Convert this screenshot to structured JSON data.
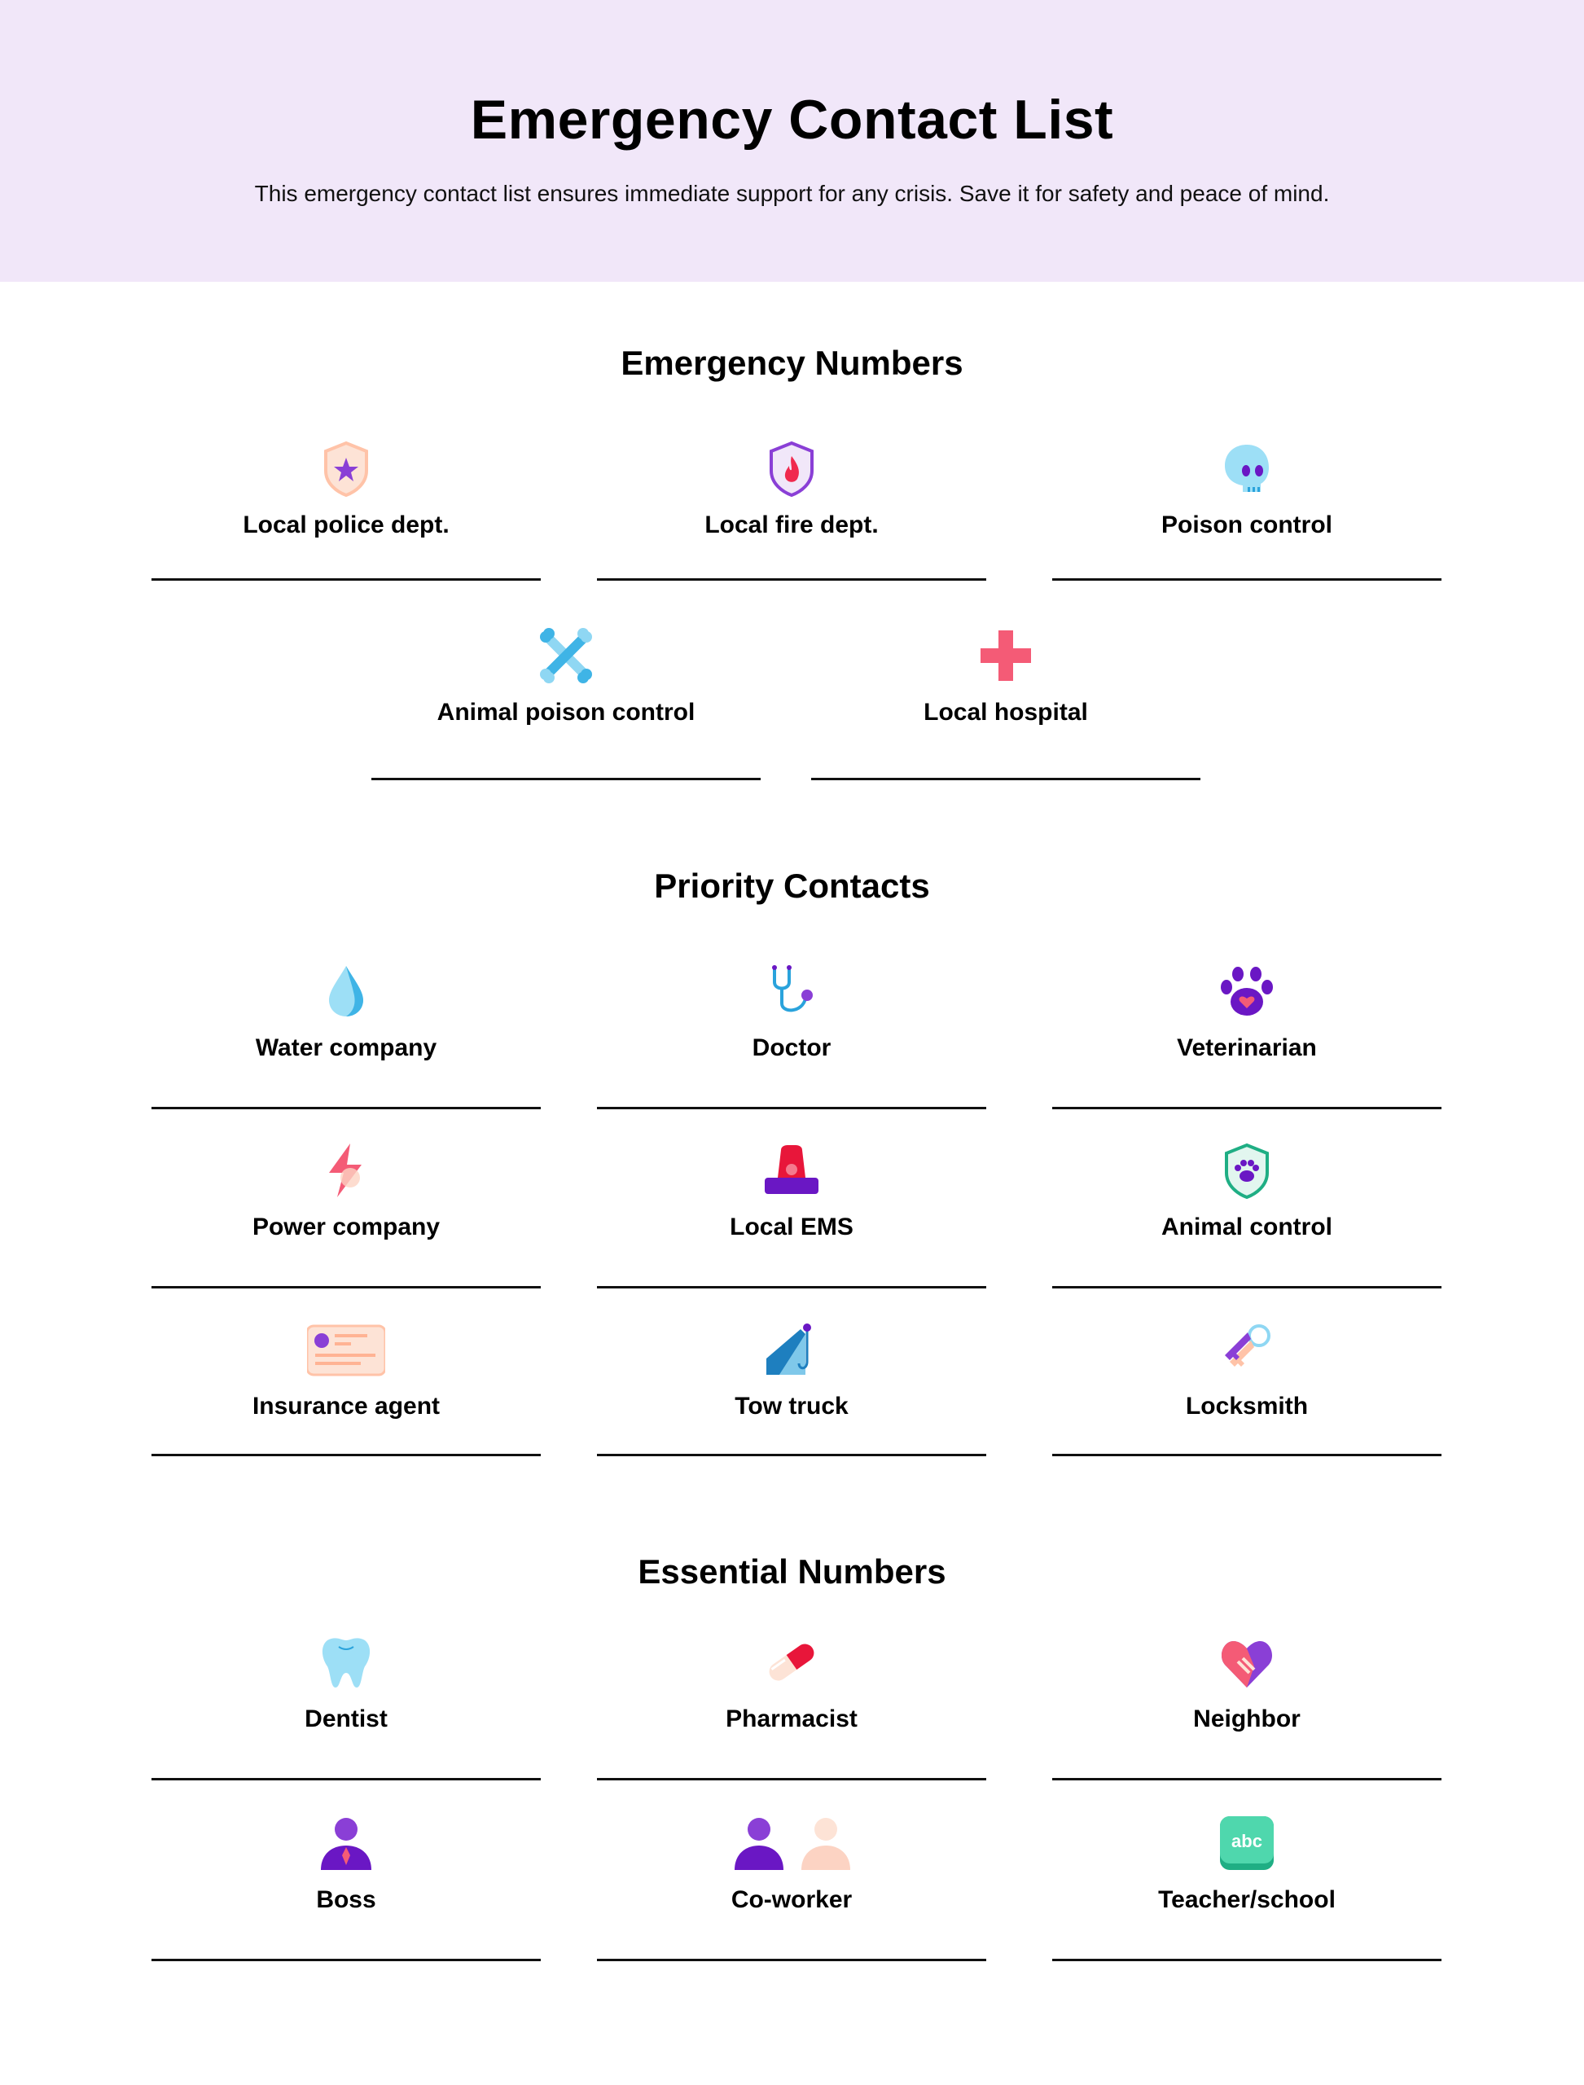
{
  "header": {
    "title": "Emergency Contact List",
    "subtitle": "This emergency contact list ensures immediate support for any crisis. Save it for safety and peace of mind.",
    "background": "#f1e7f9"
  },
  "sections": [
    {
      "title": "Emergency Numbers",
      "items": [
        {
          "label": "Local police dept.",
          "icon": "police-shield-icon"
        },
        {
          "label": "Local fire dept.",
          "icon": "fire-shield-icon"
        },
        {
          "label": "Poison control",
          "icon": "skull-icon"
        },
        {
          "label": "Animal poison control",
          "icon": "crossbones-icon"
        },
        {
          "label": "Local hospital",
          "icon": "medical-cross-icon"
        }
      ]
    },
    {
      "title": "Priority Contacts",
      "items": [
        {
          "label": "Water company",
          "icon": "water-drop-icon"
        },
        {
          "label": "Doctor",
          "icon": "stethoscope-icon"
        },
        {
          "label": "Veterinarian",
          "icon": "paw-heart-icon"
        },
        {
          "label": "Power company",
          "icon": "lightning-icon"
        },
        {
          "label": "Local EMS",
          "icon": "siren-icon"
        },
        {
          "label": "Animal control",
          "icon": "paw-shield-icon"
        },
        {
          "label": "Insurance agent",
          "icon": "id-card-icon"
        },
        {
          "label": "Tow truck",
          "icon": "tow-hook-icon"
        },
        {
          "label": "Locksmith",
          "icon": "keys-icon"
        }
      ]
    },
    {
      "title": "Essential Numbers",
      "items": [
        {
          "label": "Dentist",
          "icon": "tooth-icon"
        },
        {
          "label": "Pharmacist",
          "icon": "pill-icon"
        },
        {
          "label": "Neighbor",
          "icon": "handshake-heart-icon"
        },
        {
          "label": "Boss",
          "icon": "boss-person-icon"
        },
        {
          "label": "Co-worker",
          "icon": "coworkers-icon"
        },
        {
          "label": "Teacher/school",
          "icon": "abc-block-icon",
          "icon_text": "abc"
        }
      ]
    }
  ]
}
